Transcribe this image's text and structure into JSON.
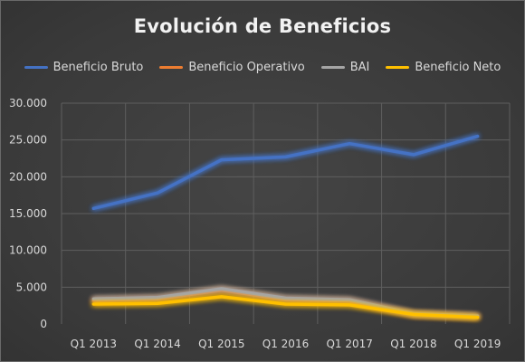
{
  "chart_data": {
    "type": "line",
    "title": "Evolución de Beneficios",
    "categories": [
      "Q1 2013",
      "Q1 2014",
      "Q1 2015",
      "Q1 2016",
      "Q1 2017",
      "Q1 2018",
      "Q1 2019"
    ],
    "series": [
      {
        "name": "Beneficio Bruto",
        "color": "#4472c4",
        "values": [
          15700,
          17800,
          22300,
          22700,
          24500,
          23000,
          25500
        ]
      },
      {
        "name": "Beneficio Operativo",
        "color": "#ed7d31",
        "values": [
          3200,
          3400,
          4600,
          3300,
          3100,
          1300,
          1000
        ]
      },
      {
        "name": "BAI",
        "color": "#a5a5a5",
        "values": [
          3400,
          3600,
          4800,
          3500,
          3300,
          1400,
          1100
        ]
      },
      {
        "name": "Beneficio Neto",
        "color": "#ffc000",
        "values": [
          2700,
          2800,
          3700,
          2700,
          2600,
          1300,
          900
        ]
      }
    ],
    "ylim": [
      0,
      30000
    ],
    "yticks": [
      "0",
      "5.000",
      "10.000",
      "15.000",
      "20.000",
      "25.000",
      "30.000"
    ],
    "ytick_values": [
      0,
      5000,
      10000,
      15000,
      20000,
      25000,
      30000
    ],
    "grid": true,
    "legend_position": "top",
    "xlabel": "",
    "ylabel": ""
  }
}
